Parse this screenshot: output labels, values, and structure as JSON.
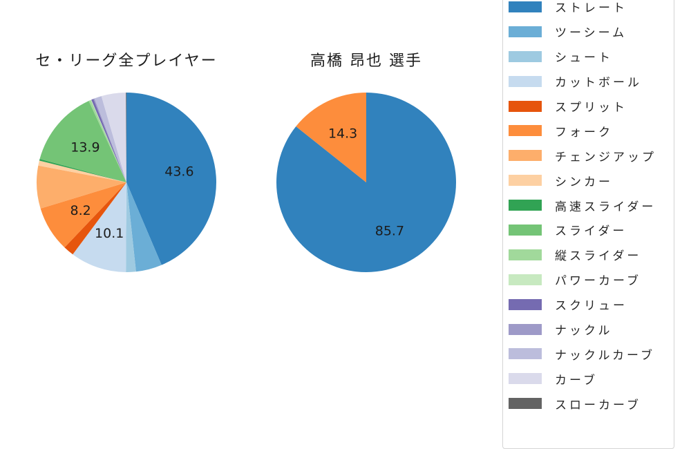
{
  "colors": {
    "background": "#ffffff",
    "text": "#1c1c1c",
    "legend_border": "#d4d4d4"
  },
  "chart_data": [
    {
      "type": "pie",
      "title": "セ・リーグ全プレイヤー",
      "labels": [
        "ストレート",
        "ツーシーム",
        "シュート",
        "カットボール",
        "スプリット",
        "フォーク",
        "チェンジアップ",
        "シンカー",
        "高速スライダー",
        "スライダー",
        "縦スライダー",
        "パワーカーブ",
        "スクリュー",
        "ナックル",
        "ナックルカーブ",
        "カーブ",
        "スローカーブ"
      ],
      "values": [
        43.6,
        4.7,
        1.8,
        10.1,
        1.9,
        8.2,
        7.7,
        0.9,
        0.3,
        13.9,
        0.4,
        0.1,
        0.4,
        0.2,
        1.3,
        4.4,
        0.1
      ],
      "colors": [
        "#3182bd",
        "#6baed6",
        "#9ecae1",
        "#c6dbef",
        "#e6550d",
        "#fd8d3c",
        "#fdae6b",
        "#fdd0a2",
        "#31a354",
        "#74c476",
        "#a1d99b",
        "#c7e9c0",
        "#756bb1",
        "#9e9ac8",
        "#bcbddc",
        "#dadaeb",
        "#636363"
      ],
      "shown_value_labels": [
        "43.6",
        "10.1",
        "8.2",
        "13.9"
      ],
      "label_threshold": 8,
      "start": "top",
      "direction": "clockwise",
      "pct_distance": 0.6
    },
    {
      "type": "pie",
      "title": "高橋 昂也 選手",
      "labels": [
        "ストレート",
        "フォーク"
      ],
      "values": [
        85.7,
        14.3
      ],
      "colors": [
        "#3182bd",
        "#fd8d3c"
      ],
      "shown_value_labels": [
        "85.7",
        "14.3"
      ],
      "label_threshold": 8,
      "start": "top",
      "direction": "clockwise",
      "pct_distance": 0.6
    }
  ],
  "legend": {
    "position": "right",
    "items": [
      {
        "label": "ストレート",
        "color": "#3182bd"
      },
      {
        "label": "ツーシーム",
        "color": "#6baed6"
      },
      {
        "label": "シュート",
        "color": "#9ecae1"
      },
      {
        "label": "カットボール",
        "color": "#c6dbef"
      },
      {
        "label": "スプリット",
        "color": "#e6550d"
      },
      {
        "label": "フォーク",
        "color": "#fd8d3c"
      },
      {
        "label": "チェンジアップ",
        "color": "#fdae6b"
      },
      {
        "label": "シンカー",
        "color": "#fdd0a2"
      },
      {
        "label": "高速スライダー",
        "color": "#31a354"
      },
      {
        "label": "スライダー",
        "color": "#74c476"
      },
      {
        "label": "縦スライダー",
        "color": "#a1d99b"
      },
      {
        "label": "パワーカーブ",
        "color": "#c7e9c0"
      },
      {
        "label": "スクリュー",
        "color": "#756bb1"
      },
      {
        "label": "ナックル",
        "color": "#9e9ac8"
      },
      {
        "label": "ナックルカーブ",
        "color": "#bcbddc"
      },
      {
        "label": "カーブ",
        "color": "#dadaeb"
      },
      {
        "label": "スローカーブ",
        "color": "#636363"
      }
    ]
  }
}
